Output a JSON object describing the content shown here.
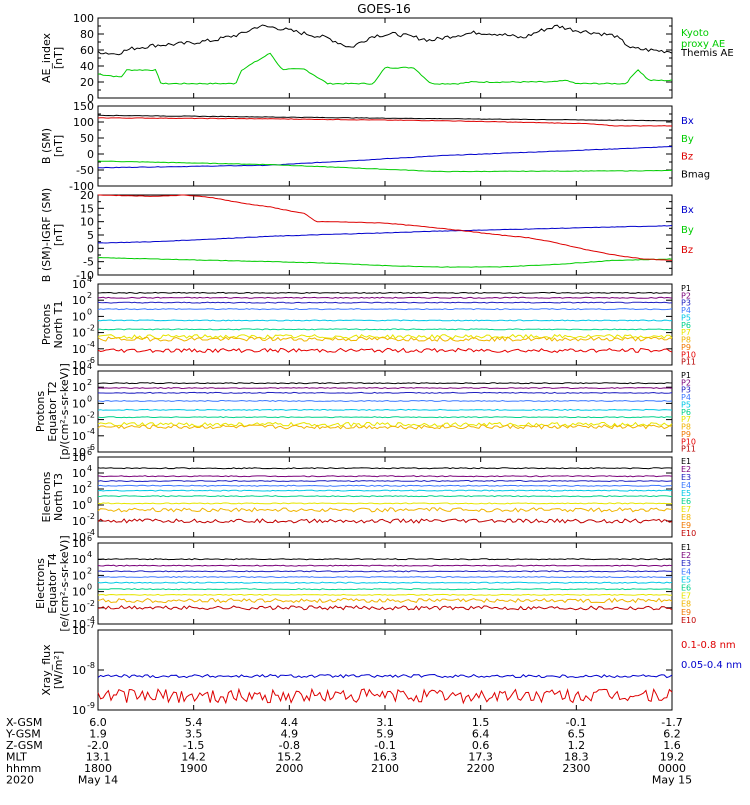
{
  "title": "GOES-16",
  "colors": {
    "black": "#000000",
    "green": "#00cc00",
    "blue": "#0000cc",
    "red": "#dd0000",
    "P1": "#000000",
    "P2": "#7a007a",
    "P3": "#2020c0",
    "P4": "#3c78ff",
    "P5": "#00c8e6",
    "P6": "#00d28c",
    "P7": "#e6e600",
    "P8": "#f0b400",
    "P9": "#f07800",
    "P10": "#e60000",
    "P11": "#b40000",
    "E1": "#000000",
    "E2": "#7a007a",
    "E3": "#2020c0",
    "E4": "#3c78ff",
    "E5": "#00c8e6",
    "E6": "#00d28c",
    "E7": "#e6e600",
    "E8": "#f0b400",
    "E9": "#f07800",
    "E10": "#c00000"
  },
  "chart_data": [
    {
      "type": "line",
      "id": "ae",
      "ylabel": "AE_index\n[nT]",
      "ylim": [
        0,
        100
      ],
      "yticks": [
        "0",
        "20",
        "40",
        "60",
        "80",
        "100"
      ],
      "legend": [
        "Kyoto\nproxy AE",
        "Themis AE"
      ],
      "series": [
        {
          "name": "Kyoto proxy AE",
          "color": "green",
          "x": [
            0,
            0.04,
            0.05,
            0.1,
            0.11,
            0.14,
            0.24,
            0.25,
            0.3,
            0.32,
            0.36,
            0.4,
            0.48,
            0.5,
            0.55,
            0.58,
            0.59,
            0.63,
            0.65,
            0.79,
            0.82,
            0.83,
            0.88,
            0.89,
            0.92,
            0.94,
            0.96,
            1.0
          ],
          "y": [
            30,
            26,
            35,
            35,
            18,
            18,
            18,
            35,
            56,
            36,
            36,
            18,
            18,
            38,
            38,
            18,
            18,
            18,
            20,
            20,
            22,
            18,
            18,
            18,
            18,
            36,
            22,
            22
          ]
        },
        {
          "name": "Themis AE",
          "color": "black",
          "x": [
            0,
            0.03,
            0.06,
            0.1,
            0.15,
            0.2,
            0.25,
            0.28,
            0.31,
            0.35,
            0.4,
            0.44,
            0.48,
            0.52,
            0.55,
            0.58,
            0.62,
            0.66,
            0.7,
            0.74,
            0.77,
            0.8,
            0.83,
            0.86,
            0.9,
            0.93,
            0.96,
            1.0
          ],
          "y": [
            58,
            55,
            62,
            66,
            68,
            72,
            80,
            90,
            88,
            82,
            75,
            63,
            78,
            80,
            76,
            72,
            78,
            82,
            80,
            75,
            84,
            90,
            85,
            82,
            78,
            62,
            60,
            58
          ]
        }
      ]
    },
    {
      "type": "line",
      "id": "b_sm",
      "ylabel": "B (SM)\n[nT]",
      "ylim": [
        -100,
        150
      ],
      "yticks": [
        "-100",
        "-50",
        "0",
        "50",
        "100",
        "150"
      ],
      "legend": [
        "Bx",
        "By",
        "Bz",
        "Bmag"
      ],
      "series": [
        {
          "name": "Bx",
          "color": "blue",
          "x": [
            0,
            0.3,
            0.6,
            1.0
          ],
          "y": [
            -43,
            -35,
            -5,
            23
          ]
        },
        {
          "name": "By",
          "color": "green",
          "x": [
            0,
            0.3,
            0.6,
            1.0
          ],
          "y": [
            -22,
            -33,
            -55,
            -52
          ]
        },
        {
          "name": "Bz",
          "color": "red",
          "x": [
            0,
            0.3,
            0.6,
            0.85,
            0.9,
            1.0
          ],
          "y": [
            113,
            110,
            104,
            95,
            88,
            88
          ]
        },
        {
          "name": "Bmag",
          "color": "black",
          "x": [
            0,
            0.5,
            1.0
          ],
          "y": [
            121,
            112,
            104
          ]
        }
      ]
    },
    {
      "type": "line",
      "id": "b_igrf",
      "ylabel": "B (SM)-IGRF (SM)\n[nT]",
      "ylim": [
        -10,
        20
      ],
      "yticks": [
        "-10",
        "-5",
        "0",
        "5",
        "10",
        "15",
        "20"
      ],
      "legend": [
        "Bx",
        "By",
        "Bz"
      ],
      "series": [
        {
          "name": "Bx",
          "color": "blue",
          "x": [
            0,
            0.1,
            0.2,
            0.3,
            0.4,
            0.5,
            0.6,
            0.7,
            0.8,
            0.9,
            1.0
          ],
          "y": [
            2,
            2.5,
            3.5,
            4.5,
            5.2,
            5.8,
            6.5,
            7,
            7.5,
            8,
            8.5
          ]
        },
        {
          "name": "By",
          "color": "green",
          "x": [
            0,
            0.1,
            0.2,
            0.3,
            0.4,
            0.5,
            0.6,
            0.7,
            0.8,
            0.9,
            1.0
          ],
          "y": [
            -3.5,
            -4,
            -4.5,
            -5,
            -5.5,
            -6.5,
            -7,
            -7,
            -6,
            -4.5,
            -4
          ]
        },
        {
          "name": "Bz",
          "color": "red",
          "x": [
            0,
            0.1,
            0.15,
            0.2,
            0.25,
            0.3,
            0.36,
            0.38,
            0.4,
            0.5,
            0.6,
            0.7,
            0.75,
            0.8,
            0.85,
            0.9,
            0.95,
            1.0
          ],
          "y": [
            20,
            19.5,
            20,
            19,
            17,
            15.5,
            13,
            10,
            10,
            9.5,
            7.5,
            5,
            4,
            2,
            -0.5,
            -2.5,
            -4,
            -4.5
          ]
        }
      ]
    },
    {
      "type": "line",
      "id": "p_t1",
      "log": true,
      "ylabel": "Protons\nNorth T1",
      "ylim": [
        -6,
        4
      ],
      "yticks": [
        {
          "e": -6
        },
        {
          "e": -4
        },
        {
          "e": -2
        },
        {
          "e": 0
        },
        {
          "e": 2
        },
        {
          "e": 4
        }
      ],
      "tick_base": "10",
      "legend": [
        "P1",
        "P2",
        "P3",
        "P4",
        "P5",
        "P6",
        "P7",
        "P8",
        "P9",
        "P10",
        "P11"
      ],
      "series": [
        {
          "name": "P1",
          "color": "P1",
          "y": 2.9
        },
        {
          "name": "P2",
          "color": "P2",
          "y": 2.3
        },
        {
          "name": "P3",
          "color": "P3",
          "y": 1.7
        },
        {
          "name": "P4",
          "color": "P4",
          "y": 0.9
        },
        {
          "name": "P5",
          "color": "P5",
          "y": -0.5
        },
        {
          "name": "P6",
          "color": "P6",
          "y": -1.6
        },
        {
          "name": "P7",
          "color": "P7",
          "y": -2.5
        },
        {
          "name": "P8",
          "color": "P8",
          "y": -2.8
        },
        {
          "name": "P10",
          "color": "P10",
          "y": -4.2
        }
      ]
    },
    {
      "type": "line",
      "id": "p_t2",
      "log": true,
      "ylabel": "Protons\nEquator T2\n[p/(cm²-s-sr-keV)]",
      "ylim": [
        -6,
        4
      ],
      "yticks": [
        {
          "e": -6
        },
        {
          "e": -4
        },
        {
          "e": -2
        },
        {
          "e": 0
        },
        {
          "e": 2
        },
        {
          "e": 4
        }
      ],
      "tick_base": "10",
      "legend": [
        "P1",
        "P2",
        "P3",
        "P4",
        "P5",
        "P6",
        "P7",
        "P8",
        "P9",
        "P10",
        "P11"
      ],
      "series": [
        {
          "name": "P1",
          "color": "P1",
          "y": 2.5
        },
        {
          "name": "P2",
          "color": "P2",
          "y": 1.9
        },
        {
          "name": "P3",
          "color": "P3",
          "y": 1.3
        },
        {
          "name": "P4",
          "color": "P4",
          "y": 0.3
        },
        {
          "name": "P5",
          "color": "P5",
          "y": -0.8
        },
        {
          "name": "P6",
          "color": "P6",
          "y": -1.7
        },
        {
          "name": "P7",
          "color": "P7",
          "y": -2.6
        },
        {
          "name": "P8",
          "color": "P8",
          "y": -2.9
        }
      ]
    },
    {
      "type": "line",
      "id": "e_t3",
      "log": true,
      "ylabel": "Electrons\nNorth T3",
      "ylim": [
        -4,
        6
      ],
      "yticks": [
        {
          "e": -4
        },
        {
          "e": -2
        },
        {
          "e": 0
        },
        {
          "e": 2
        },
        {
          "e": 4
        },
        {
          "e": 6
        }
      ],
      "tick_base": "10",
      "legend": [
        "E1",
        "E2",
        "E3",
        "E4",
        "E5",
        "E6",
        "E7",
        "E8",
        "E9",
        "E10"
      ],
      "series": [
        {
          "name": "E1",
          "color": "E1",
          "y": 4.6
        },
        {
          "name": "E2",
          "color": "E2",
          "y": 3.6
        },
        {
          "name": "E3",
          "color": "E3",
          "y": 3.0
        },
        {
          "name": "E4",
          "color": "E4",
          "y": 2.4
        },
        {
          "name": "E5",
          "color": "E5",
          "y": 1.8
        },
        {
          "name": "E6",
          "color": "E6",
          "y": 1.1
        },
        {
          "name": "E7",
          "color": "E7",
          "y": 0.2
        },
        {
          "name": "E8",
          "color": "E8",
          "y": -0.6
        },
        {
          "name": "E10",
          "color": "E10",
          "y": -2.0
        }
      ]
    },
    {
      "type": "line",
      "id": "e_t4",
      "log": true,
      "ylabel": "Electrons\nEquator T4\n[e/(cm²-s-sr-keV)]",
      "ylim": [
        -4,
        6
      ],
      "yticks": [
        {
          "e": -4
        },
        {
          "e": -2
        },
        {
          "e": 0
        },
        {
          "e": 2
        },
        {
          "e": 4
        },
        {
          "e": 6
        }
      ],
      "tick_base": "10",
      "legend": [
        "E1",
        "E2",
        "E3",
        "E4",
        "E5",
        "E6",
        "E7",
        "E8",
        "E9",
        "E10"
      ],
      "series": [
        {
          "name": "E1",
          "color": "E1",
          "y": 4.0
        },
        {
          "name": "E2",
          "color": "E2",
          "y": 3.2
        },
        {
          "name": "E3",
          "color": "E3",
          "y": 2.5
        },
        {
          "name": "E4",
          "color": "E4",
          "y": 1.8
        },
        {
          "name": "E5",
          "color": "E5",
          "y": 1.1
        },
        {
          "name": "E6",
          "color": "E6",
          "y": 0.3
        },
        {
          "name": "E7",
          "color": "E7",
          "y": -0.4
        },
        {
          "name": "E8",
          "color": "E8",
          "y": -1.1
        },
        {
          "name": "E10",
          "color": "E10",
          "y": -2.0
        }
      ]
    },
    {
      "type": "line",
      "id": "xray",
      "log": true,
      "ylabel": "Xray_flux\n[W/m²]",
      "ylim": [
        -9,
        -7
      ],
      "yticks": [
        {
          "e": -9
        },
        {
          "e": -8
        },
        {
          "e": -7
        }
      ],
      "tick_base": "10",
      "legend": [
        "0.1-0.8 nm",
        "0.05-0.4 nm"
      ],
      "series": [
        {
          "name": "0.1-0.8 nm",
          "color": "red",
          "y": -8.65
        },
        {
          "name": "0.05-0.4 nm",
          "color": "blue",
          "y": -8.15
        }
      ]
    }
  ],
  "x_axis": {
    "row_labels": [
      "X-GSM",
      "Y-GSM",
      "Z-GSM",
      "MLT",
      "hhmm",
      "2020"
    ],
    "columns": [
      [
        "6.0",
        "1.9",
        "-2.0",
        "13.1",
        "1800",
        "May 14"
      ],
      [
        "5.4",
        "3.5",
        "-1.5",
        "14.2",
        "1900",
        ""
      ],
      [
        "4.4",
        "4.9",
        "-0.8",
        "15.2",
        "2000",
        ""
      ],
      [
        "3.1",
        "5.9",
        "-0.1",
        "16.3",
        "2100",
        ""
      ],
      [
        "1.5",
        "6.4",
        "0.6",
        "17.3",
        "2200",
        ""
      ],
      [
        "-0.1",
        "6.5",
        "1.2",
        "18.3",
        "2300",
        ""
      ],
      [
        "-1.7",
        "6.2",
        "1.6",
        "19.2",
        "0000",
        "May 15"
      ]
    ]
  }
}
